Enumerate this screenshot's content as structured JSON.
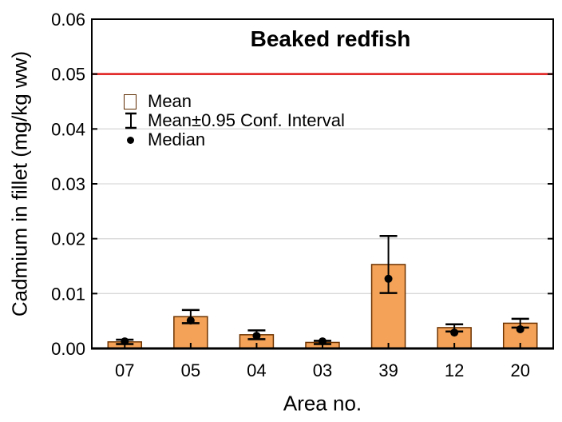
{
  "colors": {
    "bar_fill": "#f3a257",
    "bar_border": "#6e3300",
    "error_bar": "#000000",
    "median": "#000000",
    "reference_line": "#e01919",
    "gridline": "#d9d9d9",
    "axis": "#000000",
    "background": "#ffffff",
    "text": "#000000"
  },
  "chart_data": {
    "type": "bar",
    "title": "Beaked redfish",
    "xlabel": "Area no.",
    "ylabel": "Cadmium in fillet (mg/kg ww)",
    "categories": [
      "07",
      "05",
      "04",
      "03",
      "39",
      "12",
      "20"
    ],
    "series": [
      {
        "name": "Mean",
        "type": "bar",
        "values": [
          0.0012,
          0.0058,
          0.0025,
          0.0011,
          0.0153,
          0.0038,
          0.0046
        ]
      },
      {
        "name": "Mean±0.95 Conf. Interval",
        "type": "error-bar",
        "low": [
          0.0008,
          0.0046,
          0.0017,
          0.0008,
          0.0101,
          0.0031,
          0.0038
        ],
        "high": [
          0.0016,
          0.007,
          0.0033,
          0.0014,
          0.0205,
          0.0044,
          0.0054
        ]
      },
      {
        "name": "Median",
        "type": "point",
        "values": [
          0.0013,
          0.0051,
          0.0023,
          0.0013,
          0.0127,
          0.0029,
          0.0035
        ]
      }
    ],
    "reference_line": {
      "value": 0.05
    },
    "ylim": [
      0,
      0.06
    ],
    "ytick_step": 0.01,
    "ytick_decimals": 2,
    "grid": true,
    "legend_position": "upper-left-inside"
  }
}
